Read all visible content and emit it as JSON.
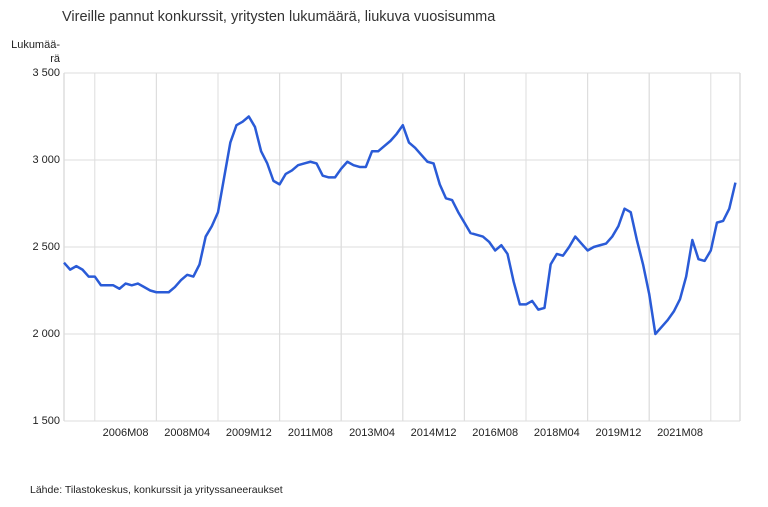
{
  "chart_data": {
    "type": "line",
    "title": "Vireille pannut konkurssit, yritysten lukumäärä, liukuva vuosisumma",
    "ylabel": [
      "Lukumää-",
      "rä"
    ],
    "source": "Lähde: Tilastokeskus, konkurssit ja yrityssaneeraukset",
    "categories": [
      null,
      null,
      null,
      null,
      null,
      null,
      null,
      null,
      null,
      null,
      "2006M08",
      null,
      null,
      null,
      null,
      null,
      null,
      null,
      null,
      null,
      "2008M04",
      null,
      null,
      null,
      null,
      null,
      null,
      null,
      null,
      null,
      "2009M12",
      null,
      null,
      null,
      null,
      null,
      null,
      null,
      null,
      null,
      "2011M08",
      null,
      null,
      null,
      null,
      null,
      null,
      null,
      null,
      null,
      "2013M04",
      null,
      null,
      null,
      null,
      null,
      null,
      null,
      null,
      null,
      "2014M12",
      null,
      null,
      null,
      null,
      null,
      null,
      null,
      null,
      null,
      "2016M08",
      null,
      null,
      null,
      null,
      null,
      null,
      null,
      null,
      null,
      "2018M04",
      null,
      null,
      null,
      null,
      null,
      null,
      null,
      null,
      null,
      "2019M12",
      null,
      null,
      null,
      null,
      null,
      null,
      null,
      null,
      null,
      "2021M08",
      null,
      null,
      null,
      null,
      null,
      null,
      null,
      null,
      null
    ],
    "series": [
      {
        "color": "#2a5bd7",
        "values": [
          2410,
          2370,
          2390,
          2370,
          2330,
          2330,
          2280,
          2280,
          2280,
          2260,
          2290,
          2280,
          2290,
          2270,
          2250,
          2240,
          2240,
          2240,
          2270,
          2310,
          2340,
          2330,
          2400,
          2560,
          2620,
          2700,
          2900,
          3100,
          3200,
          3220,
          3250,
          3190,
          3050,
          2980,
          2880,
          2860,
          2920,
          2940,
          2970,
          2980,
          2990,
          2980,
          2910,
          2900,
          2900,
          2950,
          2990,
          2970,
          2960,
          2960,
          3050,
          3050,
          3080,
          3110,
          3150,
          3200,
          3100,
          3070,
          3030,
          2990,
          2980,
          2860,
          2780,
          2770,
          2700,
          2640,
          2580,
          2570,
          2560,
          2530,
          2480,
          2510,
          2460,
          2300,
          2170,
          2170,
          2190,
          2140,
          2150,
          2400,
          2460,
          2450,
          2500,
          2560,
          2520,
          2480,
          2500,
          2510,
          2520,
          2560,
          2620,
          2720,
          2700,
          2540,
          2400,
          2230,
          2000,
          2040,
          2080,
          2130,
          2200,
          2330,
          2540,
          2430,
          2420,
          2480,
          2640,
          2650,
          2720,
          2870
        ]
      }
    ],
    "ylim": [
      1500,
      3500
    ],
    "yticks": [
      {
        "value": 1500,
        "label": "1 500"
      },
      {
        "value": 2000,
        "label": "2 000"
      },
      {
        "value": 2500,
        "label": "2 500"
      },
      {
        "value": 3000,
        "label": "3 000"
      },
      {
        "value": 3500,
        "label": "3 500"
      }
    ],
    "grid": true
  }
}
